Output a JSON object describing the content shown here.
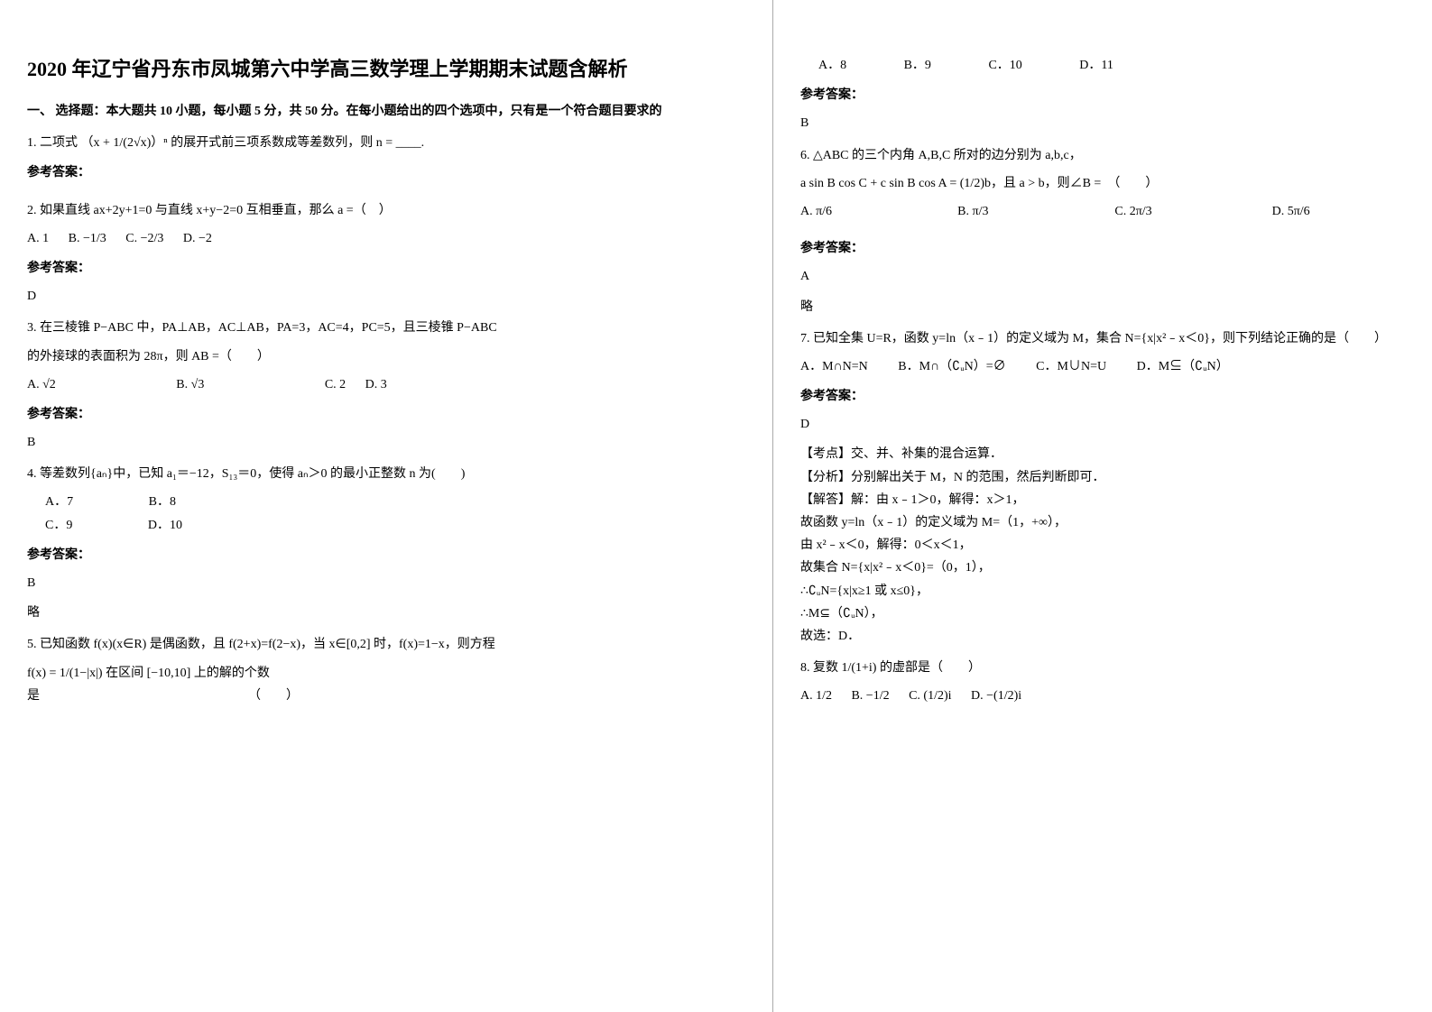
{
  "title": "2020 年辽宁省丹东市凤城第六中学高三数学理上学期期末试题含解析",
  "section_header": "一、 选择题：本大题共 10 小题，每小题 5 分，共 50 分。在每小题给出的四个选项中，只有是一个符合题目要求的",
  "answer_label": "参考答案：",
  "q1": {
    "text_pre": "1. 二项式",
    "formula": "（x + 1/(2√x)）ⁿ",
    "text_post": "的展开式前三项系数成等差数列，则 n = ____."
  },
  "q2": {
    "text": "2. 如果直线 ax+2y+1=0 与直线 x+y−2=0 互相垂直，那么 a =（　）",
    "optA": "A. 1",
    "optB": "B. −1/3",
    "optC": "C. −2/3",
    "optD": "D. −2",
    "answer": "D"
  },
  "q3": {
    "line1": "3. 在三棱锥 P−ABC 中，PA⊥AB，AC⊥AB，PA=3，AC=4，PC=5，且三棱锥 P−ABC",
    "line2": "的外接球的表面积为 28π，则 AB =（　　）",
    "optA": "A. √2",
    "optB": "B. √3",
    "optC": "C. 2",
    "optD": "D. 3",
    "answer": "B"
  },
  "q4": {
    "text": "4. 等差数列{aₙ}中，已知 a₁＝−12，S₁₃＝0，使得 aₙ＞0 的最小正整数 n 为(　　)",
    "optA": "A．7",
    "optB": "B．8",
    "optC": "C．9",
    "optD": "D．10",
    "answer": "B",
    "answer_note": "略"
  },
  "q5": {
    "line1": "5. 已知函数 f(x)(x∈R) 是偶函数，且 f(2+x)=f(2−x)，当 x∈[0,2] 时，f(x)=1−x，则方程",
    "line2": "f(x) = 1/(1−|x|) 在区间 [−10,10] 上的解的个数",
    "line3": "是　　　　　　　　　　　　　　　　　（　　）",
    "optA": "A．8",
    "optB": "B．9",
    "optC": "C．10",
    "optD": "D．11",
    "answer": "B"
  },
  "q6": {
    "line1": "6. △ABC 的三个内角 A,B,C 所对的边分别为 a,b,c，",
    "line2": "a sin B cos C + c sin B cos A = (1/2)b，且 a > b，则∠B =　（　　）",
    "optA": "A. π/6",
    "optB": "B. π/3",
    "optC": "C. 2π/3",
    "optD": "D. 5π/6",
    "answer": "A",
    "answer_note": "略"
  },
  "q7": {
    "line1": "7. 已知全集 U=R，函数 y=ln（x﹣1）的定义域为 M，集合 N={x|x²﹣x＜0}，则下列结论正确的是（　　）",
    "optA": "A．M∩N=N",
    "optB": "B．M∩（∁ᵤN）=∅",
    "optC": "C．M∪N=U",
    "optD": "D．M⊆（∁ᵤN）",
    "answer": "D",
    "exp_tag": "【考点】交、并、补集的混合运算．",
    "exp_analysis": "【分析】分别解出关于 M，N 的范围，然后判断即可．",
    "exp_solve_label": "【解答】解：由 x﹣1＞0，解得：x＞1，",
    "exp_s1": "故函数 y=ln（x﹣1）的定义域为 M=（1，+∞），",
    "exp_s2": "由 x²﹣x＜0，解得：0＜x＜1，",
    "exp_s3": "故集合 N={x|x²﹣x＜0}=（0，1），",
    "exp_s4": "∴∁ᵤN={x|x≥1 或 x≤0}，",
    "exp_s5": "∴M⊆（∁ᵤN），",
    "exp_s6": "故选：D．"
  },
  "q8": {
    "text": "8. 复数 1/(1+i) 的虚部是（　　）",
    "optA": "A. 1/2",
    "optB": "B. −1/2",
    "optC": "C. (1/2)i",
    "optD": "D. −(1/2)i"
  }
}
